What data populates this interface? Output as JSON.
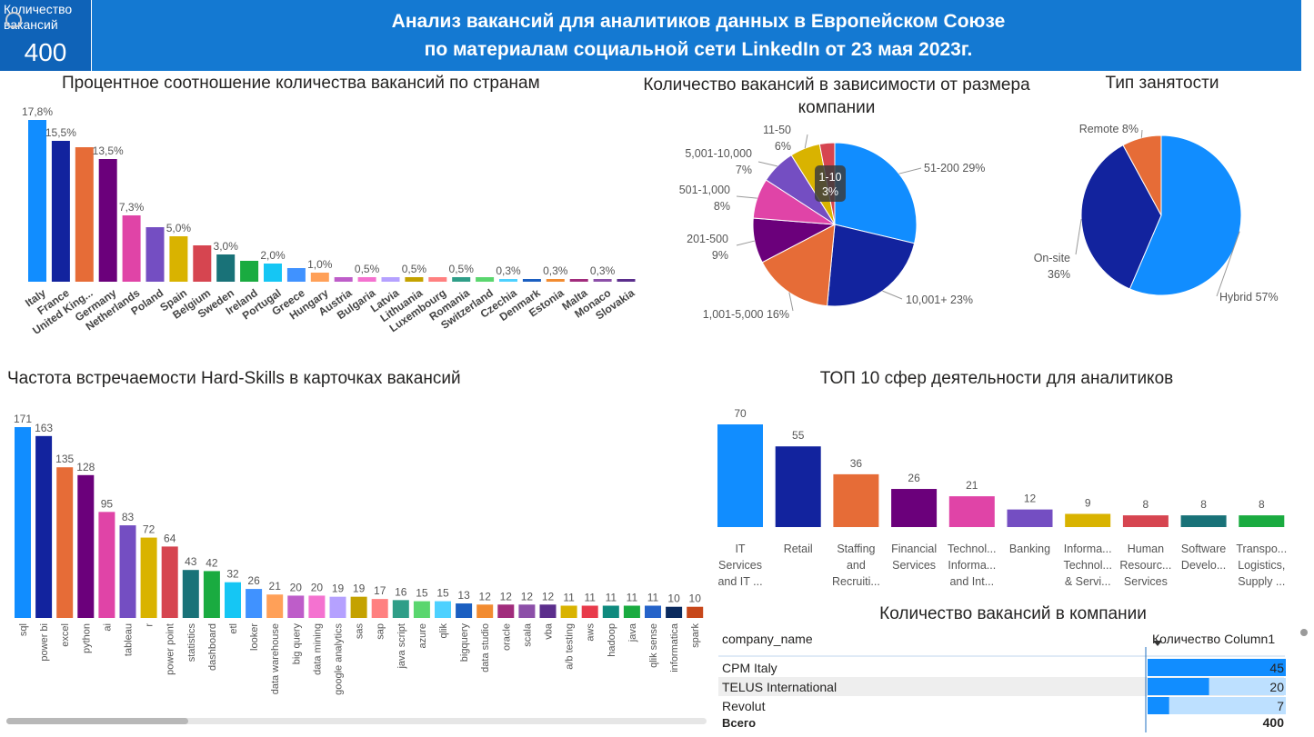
{
  "kpi": {
    "label": "Количество вакансий",
    "value": "400"
  },
  "header": {
    "line1": "Анализ вакансий для аналитиков данных в Европейском Союзе",
    "line2": "по материалам социальной сети LinkedIn от 23 мая 2023г."
  },
  "colors": {
    "header": "#1479d2",
    "kpi": "#0f63b8"
  },
  "chart_data": [
    {
      "id": "countries",
      "type": "bar",
      "title": "Процентное соотношение количества вакансий по странам",
      "categories": [
        "Italy",
        "France",
        "United King...",
        "Germany",
        "Netherlands",
        "Poland",
        "Spain",
        "Belgium",
        "Sweden",
        "Ireland",
        "Portugal",
        "Greece",
        "Hungary",
        "Austria",
        "Bulgaria",
        "Latvia",
        "Lithuania",
        "Luxembourg",
        "Romania",
        "Switzerland",
        "Czechia",
        "Denmark",
        "Estonia",
        "Malta",
        "Monaco",
        "Slovakia"
      ],
      "values": [
        17.8,
        15.5,
        14.8,
        13.5,
        7.3,
        6.0,
        5.0,
        4.0,
        3.0,
        2.3,
        2.0,
        1.5,
        1.0,
        0.5,
        0.5,
        0.5,
        0.5,
        0.5,
        0.5,
        0.5,
        0.3,
        0.3,
        0.3,
        0.3,
        0.3,
        0.3
      ],
      "labels": [
        "17,8%",
        "15,5%",
        "",
        "13,5%",
        "7,3%",
        "",
        "5,0%",
        "",
        "3,0%",
        "",
        "2,0%",
        "",
        "1,0%",
        "",
        "0,5%",
        "",
        "0,5%",
        "",
        "0,5%",
        "",
        "0,3%",
        "",
        "0,3%",
        "",
        "0,3%",
        ""
      ],
      "colors": [
        "#118dff",
        "#12239e",
        "#e66c37",
        "#6b007b",
        "#e044a7",
        "#744ec2",
        "#d9b300",
        "#d64550",
        "#197278",
        "#1aab40",
        "#15c6f4",
        "#4092ff",
        "#ffa058",
        "#be5dc9",
        "#f472d0",
        "#b5a1ff",
        "#c4a200",
        "#ff8080",
        "#2f9e88",
        "#5ad66e",
        "#4dd1ff",
        "#1b5fc1",
        "#f28b30",
        "#a12c7c",
        "#8c4fa8",
        "#5b2e8c"
      ],
      "unit": "%"
    },
    {
      "id": "company_size",
      "type": "pie",
      "title": "Количество вакансий в зависимости от размера компании",
      "slices": [
        {
          "name": "51-200",
          "value": 29,
          "color": "#118dff"
        },
        {
          "name": "10,001+",
          "value": 23,
          "color": "#12239e"
        },
        {
          "name": "1,001-5,000",
          "value": 16,
          "color": "#e66c37"
        },
        {
          "name": "201-500",
          "value": 9,
          "color": "#6b007b"
        },
        {
          "name": "501-1,000",
          "value": 8,
          "color": "#e044a7"
        },
        {
          "name": "5,001-10,000",
          "value": 7,
          "color": "#744ec2"
        },
        {
          "name": "11-50",
          "value": 6,
          "color": "#d9b300"
        },
        {
          "name": "1-10",
          "value": 3,
          "color": "#d64550"
        }
      ],
      "labels": [
        "51-200 29%",
        "10,001+ 23%",
        "1,001-5,000 16%",
        "201-500",
        "9%",
        "501-1,000",
        "8%",
        "5,001-10,000",
        "7%",
        "11-50",
        "6%",
        "1-10",
        "3%"
      ]
    },
    {
      "id": "employment_type",
      "type": "pie",
      "title": "Тип занятости",
      "slices": [
        {
          "name": "Hybrid",
          "value": 57,
          "color": "#118dff"
        },
        {
          "name": "On-site",
          "value": 36,
          "color": "#12239e"
        },
        {
          "name": "Remote",
          "value": 8,
          "color": "#e66c37"
        }
      ],
      "labels": [
        "Hybrid 57%",
        "On-site",
        "36%",
        "Remote 8%"
      ]
    },
    {
      "id": "skills",
      "type": "bar",
      "title": "Частота встречаемости Hard-Skills в карточках вакансий",
      "categories": [
        "sql",
        "power bi",
        "excel",
        "python",
        "ai",
        "tableau",
        "r",
        "power point",
        "statistics",
        "dashboard",
        "etl",
        "looker",
        "data warehouse",
        "big query",
        "data mining",
        "google analytics",
        "sas",
        "sap",
        "java script",
        "azure",
        "qlik",
        "bigquery",
        "data studio",
        "oracle",
        "scala",
        "vba",
        "a/b testing",
        "aws",
        "hadoop",
        "java",
        "qlik sense",
        "informatica",
        "spark"
      ],
      "values": [
        171,
        163,
        135,
        128,
        95,
        83,
        72,
        64,
        43,
        42,
        32,
        26,
        21,
        20,
        20,
        19,
        19,
        17,
        16,
        15,
        15,
        13,
        12,
        12,
        12,
        12,
        11,
        11,
        11,
        11,
        11,
        10,
        10
      ],
      "labels": [
        "171",
        "163",
        "135",
        "128",
        "95",
        "83",
        "72",
        "64",
        "43",
        "42",
        "32",
        "26",
        "21",
        "20",
        "20",
        "19",
        "19",
        "17",
        "16",
        "15",
        "15",
        "13",
        "12",
        "12",
        "12",
        "12",
        "11",
        "11",
        "11",
        "11",
        "11",
        "10",
        "10"
      ],
      "colors": [
        "#118dff",
        "#12239e",
        "#e66c37",
        "#6b007b",
        "#e044a7",
        "#744ec2",
        "#d9b300",
        "#d64550",
        "#197278",
        "#1aab40",
        "#15c6f4",
        "#4092ff",
        "#ffa058",
        "#be5dc9",
        "#f472d0",
        "#b5a1ff",
        "#c4a200",
        "#ff8080",
        "#2f9e88",
        "#5ad66e",
        "#4dd1ff",
        "#1b5fc1",
        "#f28b30",
        "#a12c7c",
        "#8c4fa8",
        "#5b2e8c",
        "#d9b300",
        "#e83b4b",
        "#0f8a7e",
        "#1aab40",
        "#2563c9",
        "#0a2a5e",
        "#c7471a"
      ]
    },
    {
      "id": "industries",
      "type": "bar",
      "title": "ТОП 10 сфер деятельности для аналитиков",
      "categories": [
        [
          "IT",
          "Services",
          "and IT ..."
        ],
        [
          "Retail"
        ],
        [
          "Staffing",
          "and",
          "Recruiti..."
        ],
        [
          "Financial",
          "Services"
        ],
        [
          "Technol...",
          "Informa...",
          "and Int..."
        ],
        [
          "Banking"
        ],
        [
          "Informa...",
          "Technol...",
          "& Servi..."
        ],
        [
          "Human",
          "Resourc...",
          "Services"
        ],
        [
          "Software",
          "Develo..."
        ],
        [
          "Transpo...",
          "Logistics,",
          "Supply ..."
        ]
      ],
      "values": [
        70,
        55,
        36,
        26,
        21,
        12,
        9,
        8,
        8,
        8
      ],
      "labels": [
        "70",
        "55",
        "36",
        "26",
        "21",
        "12",
        "9",
        "8",
        "8",
        "8"
      ],
      "colors": [
        "#118dff",
        "#12239e",
        "#e66c37",
        "#6b007b",
        "#e044a7",
        "#744ec2",
        "#d9b300",
        "#d64550",
        "#197278",
        "#1aab40"
      ]
    },
    {
      "id": "companies",
      "type": "table",
      "title": "Количество вакансий в компании",
      "columns": [
        "company_name",
        "Количество Column1"
      ],
      "rows": [
        [
          "CPM Italy",
          "45"
        ],
        [
          "TELUS International",
          "20"
        ],
        [
          "Revolut",
          "7"
        ]
      ],
      "values": [
        45,
        20,
        7
      ],
      "total": [
        "Всего",
        "400"
      ]
    }
  ]
}
